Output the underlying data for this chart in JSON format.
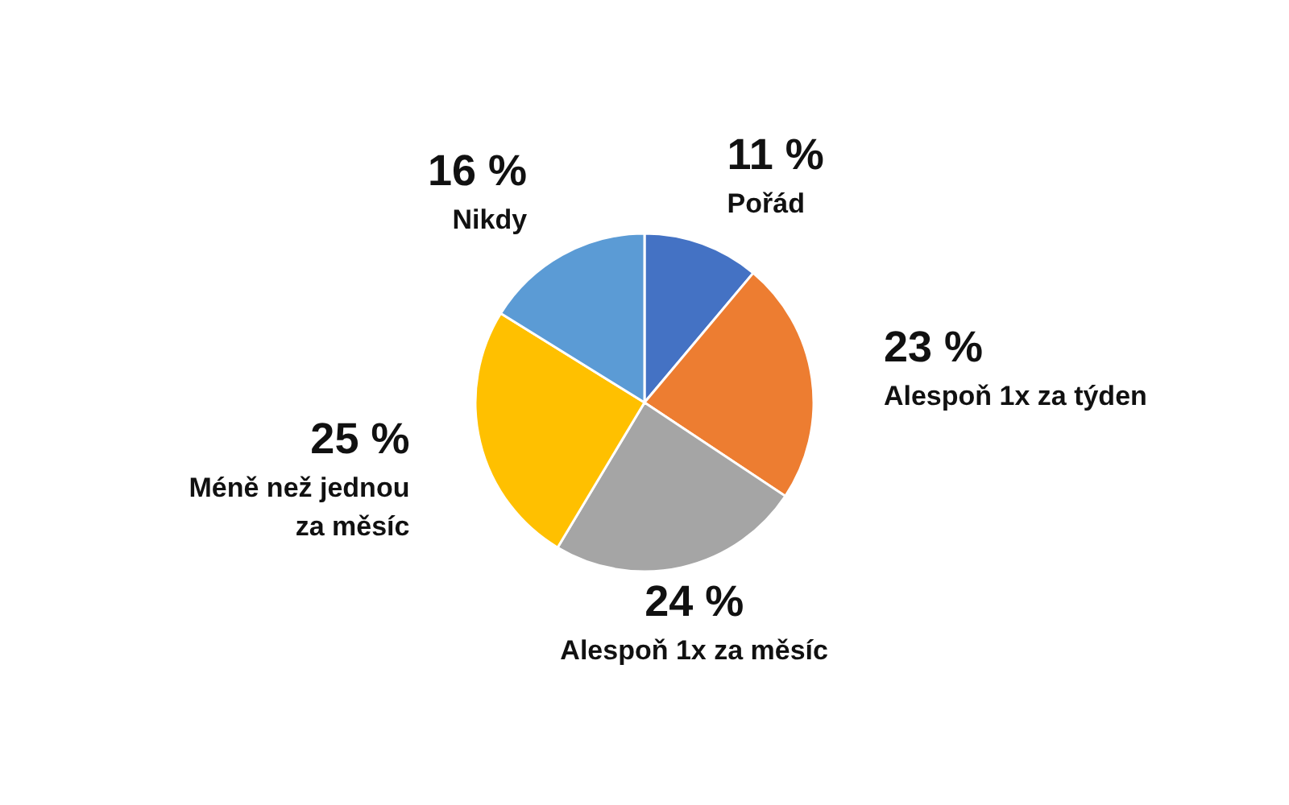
{
  "chart_data": {
    "type": "pie",
    "categories": [
      "Pořád",
      "Alespoň 1x za týden",
      "Alespoň 1x za měsíc",
      "Méně než jednou za měsíc",
      "Nikdy"
    ],
    "values": [
      11,
      23,
      24,
      25,
      16
    ],
    "colors": [
      "#4472c4",
      "#ed7d31",
      "#a5a5a5",
      "#ffc000",
      "#5b9bd5"
    ],
    "value_labels": [
      "11 %",
      "23 %",
      "24 %",
      "25 %",
      "16 %"
    ]
  }
}
